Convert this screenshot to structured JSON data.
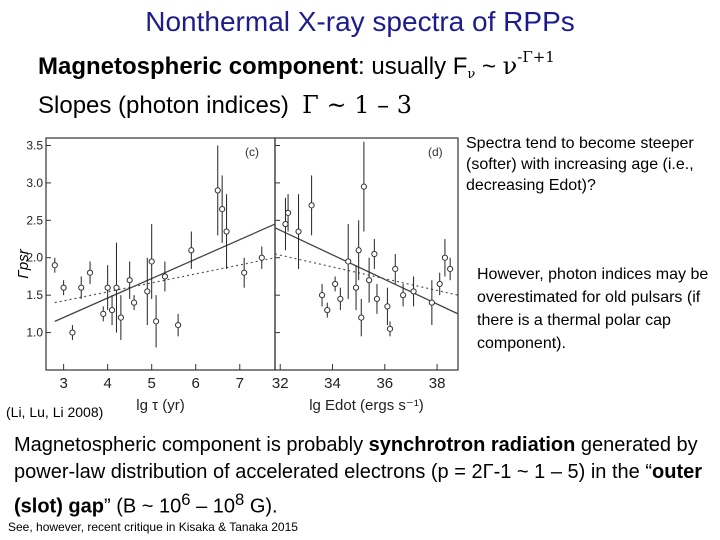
{
  "title": "Nonthermal X-ray spectra of RPPs",
  "intro": {
    "line1_bold": "Magnetospheric component",
    "line1_rest": ": usually F",
    "line1_sub": "ν",
    "line1_sim": " ~ ",
    "line1_nu": "ν",
    "line1_exp": "-Γ+1",
    "line2_text": "Slopes (photon indices)",
    "line2_expr": "Γ ~ 1 – 3"
  },
  "notes": {
    "steeper": "Spectra tend to become steeper (softer) with increasing age (i.e., decreasing Edot)?",
    "overestimate": "However, photon indices may be overestimated for old pulsars (if there is a thermal polar cap component)."
  },
  "citation": "(Li, Lu, Li 2008)",
  "conclusion": {
    "part1": "Magnetospheric component is probably ",
    "bold1": "synchrotron radiation",
    "part2": " generated by power-law distribution of accelerated electrons (p = 2Γ-1 ~ 1 – 5)  in the “",
    "bold2": "outer (slot) gap",
    "part3": "” (B ~ 10",
    "sup1": "6",
    "part4": " – 10",
    "sup2": "8",
    "part5": " G)."
  },
  "critique": "See, however, recent critique in Kisaka & Tanaka 2015",
  "chart_data": [
    {
      "type": "scatter",
      "panel_label": "(c)",
      "xlabel": "lg τ (yr)",
      "ylabel": "Γpsr",
      "xlim": [
        2.6,
        7.8
      ],
      "ylim": [
        0.5,
        3.6
      ],
      "xticks": [
        3,
        4,
        5,
        6,
        7
      ],
      "yticks": [
        1.0,
        1.5,
        2.0,
        2.5,
        3.0,
        3.5
      ],
      "points": [
        {
          "x": 2.8,
          "y": 1.9,
          "err": 0.1
        },
        {
          "x": 3.0,
          "y": 1.6,
          "err": 0.1
        },
        {
          "x": 3.2,
          "y": 1.0,
          "err": 0.1
        },
        {
          "x": 3.4,
          "y": 1.6,
          "err": 0.15
        },
        {
          "x": 3.6,
          "y": 1.8,
          "err": 0.15
        },
        {
          "x": 3.9,
          "y": 1.25,
          "err": 0.1
        },
        {
          "x": 4.0,
          "y": 1.6,
          "err": 0.3
        },
        {
          "x": 4.1,
          "y": 1.3,
          "err": 0.2
        },
        {
          "x": 4.2,
          "y": 1.6,
          "err": 0.6
        },
        {
          "x": 4.3,
          "y": 1.2,
          "err": 0.3
        },
        {
          "x": 4.5,
          "y": 1.7,
          "err": 0.25
        },
        {
          "x": 4.6,
          "y": 1.4,
          "err": 0.1
        },
        {
          "x": 4.9,
          "y": 1.55,
          "err": 0.45
        },
        {
          "x": 5.0,
          "y": 1.95,
          "err": 0.5
        },
        {
          "x": 5.1,
          "y": 1.15,
          "err": 0.35
        },
        {
          "x": 5.3,
          "y": 1.75,
          "err": 0.2
        },
        {
          "x": 5.6,
          "y": 1.1,
          "err": 0.15
        },
        {
          "x": 5.9,
          "y": 2.1,
          "err": 0.25
        },
        {
          "x": 6.5,
          "y": 2.9,
          "err": 0.6
        },
        {
          "x": 6.6,
          "y": 2.65,
          "err": 0.45
        },
        {
          "x": 6.7,
          "y": 2.35,
          "err": 0.5
        },
        {
          "x": 7.1,
          "y": 1.8,
          "err": 0.2
        },
        {
          "x": 7.5,
          "y": 2.0,
          "err": 0.15
        }
      ],
      "fit_solid": [
        [
          2.8,
          1.15
        ],
        [
          7.8,
          2.45
        ]
      ],
      "fit_dotted": [
        [
          2.8,
          1.4
        ],
        [
          7.8,
          2.0
        ]
      ]
    },
    {
      "type": "scatter",
      "panel_label": "(d)",
      "xlabel": "lg Edot (ergs s⁻¹)",
      "xlim": [
        31.8,
        38.8
      ],
      "ylim": [
        0.5,
        3.6
      ],
      "xticks": [
        32,
        34,
        36,
        38
      ],
      "yticks": [
        1.0,
        1.5,
        2.0,
        2.5,
        3.0,
        3.5
      ],
      "points": [
        {
          "x": 32.2,
          "y": 2.45,
          "err": 0.35
        },
        {
          "x": 32.3,
          "y": 2.6,
          "err": 0.25
        },
        {
          "x": 32.7,
          "y": 2.35,
          "err": 0.5
        },
        {
          "x": 33.2,
          "y": 2.7,
          "err": 0.4
        },
        {
          "x": 33.6,
          "y": 1.5,
          "err": 0.15
        },
        {
          "x": 33.8,
          "y": 1.3,
          "err": 0.1
        },
        {
          "x": 34.1,
          "y": 1.65,
          "err": 0.1
        },
        {
          "x": 34.3,
          "y": 1.45,
          "err": 0.15
        },
        {
          "x": 34.6,
          "y": 1.95,
          "err": 0.5
        },
        {
          "x": 34.9,
          "y": 1.6,
          "err": 0.3
        },
        {
          "x": 35.0,
          "y": 2.1,
          "err": 0.4
        },
        {
          "x": 35.1,
          "y": 1.2,
          "err": 0.25
        },
        {
          "x": 35.2,
          "y": 2.95,
          "err": 0.6
        },
        {
          "x": 35.4,
          "y": 1.7,
          "err": 0.3
        },
        {
          "x": 35.6,
          "y": 2.05,
          "err": 0.2
        },
        {
          "x": 35.7,
          "y": 1.45,
          "err": 0.2
        },
        {
          "x": 36.1,
          "y": 1.35,
          "err": 0.25
        },
        {
          "x": 36.2,
          "y": 1.05,
          "err": 0.1
        },
        {
          "x": 36.4,
          "y": 1.85,
          "err": 0.2
        },
        {
          "x": 36.7,
          "y": 1.5,
          "err": 0.15
        },
        {
          "x": 37.1,
          "y": 1.55,
          "err": 0.2
        },
        {
          "x": 37.8,
          "y": 1.4,
          "err": 0.3
        },
        {
          "x": 38.1,
          "y": 1.65,
          "err": 0.15
        },
        {
          "x": 38.3,
          "y": 2.0,
          "err": 0.25
        },
        {
          "x": 38.5,
          "y": 1.85,
          "err": 0.15
        }
      ],
      "fit_solid": [
        [
          31.8,
          2.4
        ],
        [
          38.8,
          1.25
        ]
      ],
      "fit_dotted": [
        [
          31.8,
          2.05
        ],
        [
          38.8,
          1.5
        ]
      ]
    }
  ]
}
